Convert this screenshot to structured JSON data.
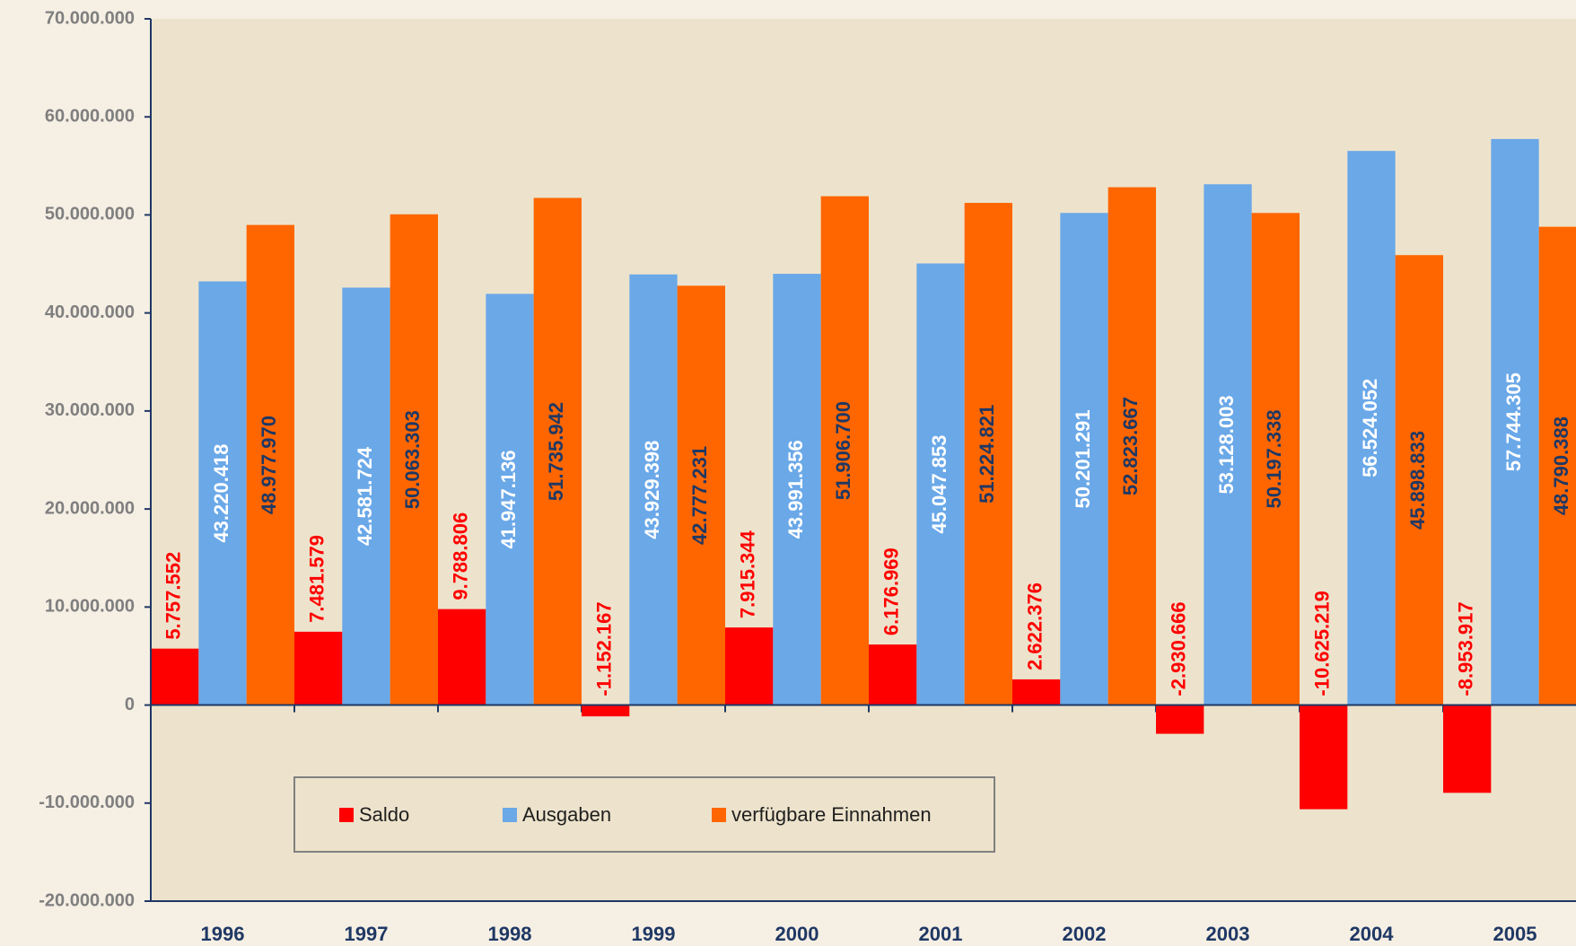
{
  "chart_data": {
    "type": "bar",
    "categories": [
      "1996",
      "1997",
      "1998",
      "1999",
      "2000",
      "2001",
      "2002",
      "2003",
      "2004",
      "2005"
    ],
    "series": [
      {
        "name": "Saldo",
        "color": "#ff0000",
        "label_color": "#ff0000",
        "values": [
          5757552,
          7481579,
          9788806,
          -1152167,
          7915344,
          6176969,
          2622376,
          -2930666,
          -10625219,
          -8953917
        ],
        "value_labels": [
          "5.757.552",
          "7.481.579",
          "9.788.806",
          "-1.152.167",
          "7.915.344",
          "6.176.969",
          "2.622.376",
          "-2.930.666",
          "-10.625.219",
          "-8.953.917"
        ]
      },
      {
        "name": "Ausgaben",
        "color": "#6aa8e8",
        "label_color": "#ffffff",
        "values": [
          43220418,
          42581724,
          41947136,
          43929398,
          43991356,
          45047853,
          50201291,
          53128003,
          56524052,
          57744305
        ],
        "value_labels": [
          "43.220.418",
          "42.581.724",
          "41.947.136",
          "43.929.398",
          "43.991.356",
          "45.047.853",
          "50.201.291",
          "53.128.003",
          "56.524.052",
          "57.744.305"
        ]
      },
      {
        "name": "verfügbare Einnahmen",
        "color": "#ff6600",
        "label_color": "#1f3864",
        "values": [
          48977970,
          50063303,
          51735942,
          42777231,
          51906700,
          51224821,
          52823667,
          50197338,
          45898833,
          48790388
        ],
        "value_labels": [
          "48.977.970",
          "50.063.303",
          "51.735.942",
          "42.777.231",
          "51.906.700",
          "51.224.821",
          "52.823.667",
          "50.197.338",
          "45.898.833",
          "48.790.388"
        ]
      }
    ],
    "ylim": [
      -20000000,
      70000000
    ],
    "yticks": [
      {
        "value": -20000000,
        "label": "-20.000.000"
      },
      {
        "value": -10000000,
        "label": "-10.000.000"
      },
      0,
      {
        "value": 10000000,
        "label": "10.000.000"
      },
      {
        "value": 20000000,
        "label": "20.000.000"
      },
      {
        "value": 30000000,
        "label": "30.000.000"
      },
      {
        "value": 40000000,
        "label": "40.000.000"
      },
      {
        "value": 50000000,
        "label": "50.000.000"
      },
      {
        "value": 60000000,
        "label": "60.000.000"
      },
      {
        "value": 70000000,
        "label": "70.000.000"
      }
    ],
    "legend": "bottom-left"
  }
}
